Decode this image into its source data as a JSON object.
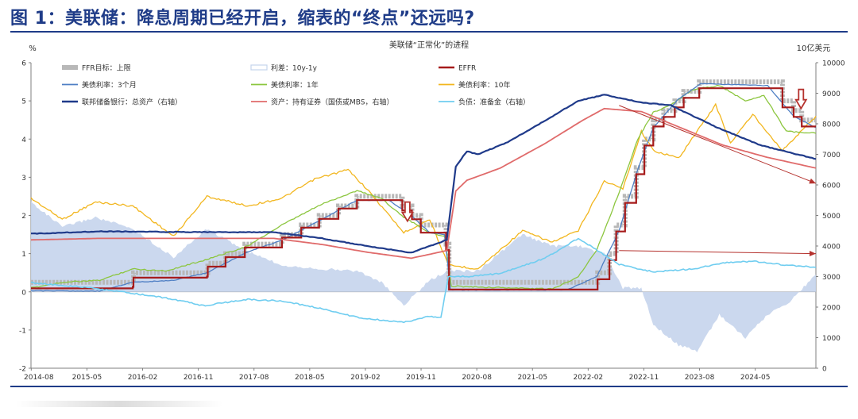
{
  "figure_title": "图 1：美联储：降息周期已经开启，缩表的“终点”还远吗?",
  "colors": {
    "ffr_target": "#b8b8b8",
    "spread": "#c5d4ec",
    "effr": "#a61b1b",
    "t3m": "#4f7fc4",
    "t1y": "#8cc63f",
    "t10y": "#f2b61e",
    "total_assets": "#1f3a8a",
    "securities": "#e06b6b",
    "reserves": "#6fcdf0",
    "arrow": "#b5322e",
    "axis": "#7f7f7f"
  },
  "chart_data": {
    "type": "line",
    "title": "美联储“正常化”的进程",
    "left_axis_label": "%",
    "right_axis_label": "10亿美元",
    "ylim_left": [
      -2,
      6
    ],
    "ylim_right": [
      0,
      10000
    ],
    "left_ticks": [
      "6",
      "5",
      "4",
      "3",
      "2",
      "1",
      "0",
      "-1",
      "-2"
    ],
    "right_ticks": [
      "10000",
      "9000",
      "8000",
      "7000",
      "6000",
      "5000",
      "4000",
      "3000",
      "2000",
      "1000",
      "0"
    ],
    "x_ticks": [
      "2014-08",
      "2015-05",
      "2016-02",
      "2016-11",
      "2017-08",
      "2018-05",
      "2019-02",
      "2019-11",
      "2020-08",
      "2021-05",
      "2022-02",
      "2022-11",
      "2023-08",
      "2024-05"
    ],
    "legend": [
      {
        "key": "ffr_target",
        "label": "FFR目标：上限",
        "kind": "bar"
      },
      {
        "key": "spread",
        "label": "利差：10y-1y",
        "kind": "area"
      },
      {
        "key": "effr",
        "label": "EFFR",
        "kind": "line"
      },
      {
        "key": "t3m",
        "label": "美债利率：3个月",
        "kind": "line"
      },
      {
        "key": "t1y",
        "label": "美债利率：1年",
        "kind": "line"
      },
      {
        "key": "t10y",
        "label": "美债利率：10年",
        "kind": "line"
      },
      {
        "key": "total_assets",
        "label": "联邦储备银行：总资产（右轴）",
        "kind": "line"
      },
      {
        "key": "securities",
        "label": "资产：持有证券（国债或MBS，右轴）",
        "kind": "line"
      },
      {
        "key": "reserves",
        "label": "负债：准备金（右轴）",
        "kind": "line"
      }
    ],
    "series": [
      {
        "name": "FFR目标：上限",
        "axis": "left",
        "points": [
          [
            2014.58,
            0.25
          ],
          [
            2015.95,
            0.25
          ],
          [
            2015.96,
            0.5
          ],
          [
            2016.95,
            0.5
          ],
          [
            2016.96,
            0.75
          ],
          [
            2017.2,
            1.0
          ],
          [
            2017.46,
            1.25
          ],
          [
            2017.96,
            1.5
          ],
          [
            2018.22,
            1.75
          ],
          [
            2018.46,
            2.0
          ],
          [
            2018.72,
            2.25
          ],
          [
            2018.97,
            2.5
          ],
          [
            2019.58,
            2.25
          ],
          [
            2019.71,
            2.0
          ],
          [
            2019.83,
            1.75
          ],
          [
            2020.17,
            1.25
          ],
          [
            2020.21,
            0.25
          ],
          [
            2022.21,
            0.5
          ],
          [
            2022.37,
            1.0
          ],
          [
            2022.46,
            1.75
          ],
          [
            2022.58,
            2.5
          ],
          [
            2022.73,
            3.25
          ],
          [
            2022.84,
            4.0
          ],
          [
            2022.96,
            4.5
          ],
          [
            2023.1,
            4.75
          ],
          [
            2023.25,
            5.0
          ],
          [
            2023.37,
            5.25
          ],
          [
            2023.58,
            5.5
          ],
          [
            2024.7,
            5.0
          ],
          [
            2024.85,
            4.75
          ],
          [
            2024.96,
            4.5
          ],
          [
            2025.15,
            4.5
          ]
        ]
      },
      {
        "name": "EFFR",
        "axis": "left",
        "points": [
          [
            2014.58,
            0.09
          ],
          [
            2015.95,
            0.13
          ],
          [
            2015.96,
            0.37
          ],
          [
            2016.95,
            0.4
          ],
          [
            2016.96,
            0.66
          ],
          [
            2017.2,
            0.91
          ],
          [
            2017.46,
            1.16
          ],
          [
            2017.96,
            1.42
          ],
          [
            2018.22,
            1.68
          ],
          [
            2018.46,
            1.91
          ],
          [
            2018.72,
            2.18
          ],
          [
            2018.97,
            2.4
          ],
          [
            2019.58,
            2.13
          ],
          [
            2019.71,
            1.9
          ],
          [
            2019.83,
            1.55
          ],
          [
            2020.17,
            1.1
          ],
          [
            2020.21,
            0.06
          ],
          [
            2022.21,
            0.33
          ],
          [
            2022.37,
            0.83
          ],
          [
            2022.46,
            1.58
          ],
          [
            2022.58,
            2.33
          ],
          [
            2022.73,
            3.08
          ],
          [
            2022.84,
            3.83
          ],
          [
            2022.96,
            4.33
          ],
          [
            2023.1,
            4.58
          ],
          [
            2023.25,
            4.83
          ],
          [
            2023.37,
            5.08
          ],
          [
            2023.58,
            5.33
          ],
          [
            2024.7,
            4.83
          ],
          [
            2024.85,
            4.58
          ],
          [
            2024.96,
            4.33
          ],
          [
            2025.15,
            4.33
          ]
        ]
      },
      {
        "name": "美债利率：3个月",
        "axis": "left",
        "points": [
          [
            2014.58,
            0.03
          ],
          [
            2015.5,
            0.02
          ],
          [
            2015.95,
            0.25
          ],
          [
            2016.5,
            0.3
          ],
          [
            2016.95,
            0.5
          ],
          [
            2017.5,
            1.05
          ],
          [
            2017.96,
            1.35
          ],
          [
            2018.5,
            1.9
          ],
          [
            2018.97,
            2.4
          ],
          [
            2019.4,
            2.4
          ],
          [
            2019.7,
            2.0
          ],
          [
            2019.95,
            1.55
          ],
          [
            2020.15,
            1.5
          ],
          [
            2020.23,
            0.05
          ],
          [
            2021.8,
            0.05
          ],
          [
            2022.2,
            0.4
          ],
          [
            2022.5,
            1.6
          ],
          [
            2022.75,
            3.2
          ],
          [
            2022.96,
            4.3
          ],
          [
            2023.3,
            5.05
          ],
          [
            2023.6,
            5.45
          ],
          [
            2024.5,
            5.4
          ],
          [
            2024.85,
            4.6
          ],
          [
            2025.15,
            4.3
          ]
        ]
      },
      {
        "name": "美债利率：1年",
        "axis": "left",
        "points": [
          [
            2014.58,
            0.1
          ],
          [
            2015.0,
            0.25
          ],
          [
            2015.5,
            0.3
          ],
          [
            2015.95,
            0.6
          ],
          [
            2016.4,
            0.55
          ],
          [
            2016.95,
            0.85
          ],
          [
            2017.5,
            1.2
          ],
          [
            2017.96,
            1.75
          ],
          [
            2018.5,
            2.3
          ],
          [
            2018.97,
            2.65
          ],
          [
            2019.3,
            2.45
          ],
          [
            2019.6,
            1.95
          ],
          [
            2019.95,
            1.55
          ],
          [
            2020.15,
            1.45
          ],
          [
            2020.24,
            0.15
          ],
          [
            2021.6,
            0.07
          ],
          [
            2021.95,
            0.4
          ],
          [
            2022.2,
            1.1
          ],
          [
            2022.5,
            2.6
          ],
          [
            2022.75,
            4.0
          ],
          [
            2022.96,
            4.7
          ],
          [
            2023.2,
            4.9
          ],
          [
            2023.5,
            5.3
          ],
          [
            2023.85,
            5.4
          ],
          [
            2024.2,
            5.0
          ],
          [
            2024.45,
            5.15
          ],
          [
            2024.75,
            4.2
          ],
          [
            2025.15,
            4.15
          ]
        ]
      },
      {
        "name": "美债利率：10年",
        "axis": "left",
        "points": [
          [
            2014.58,
            2.45
          ],
          [
            2015.0,
            1.9
          ],
          [
            2015.45,
            2.35
          ],
          [
            2015.95,
            2.25
          ],
          [
            2016.5,
            1.45
          ],
          [
            2016.95,
            2.5
          ],
          [
            2017.5,
            2.25
          ],
          [
            2017.96,
            2.45
          ],
          [
            2018.4,
            2.95
          ],
          [
            2018.85,
            3.2
          ],
          [
            2019.1,
            2.7
          ],
          [
            2019.6,
            1.55
          ],
          [
            2019.95,
            1.9
          ],
          [
            2020.2,
            0.7
          ],
          [
            2020.6,
            0.6
          ],
          [
            2021.2,
            1.6
          ],
          [
            2021.6,
            1.3
          ],
          [
            2021.95,
            1.6
          ],
          [
            2022.3,
            2.9
          ],
          [
            2022.55,
            2.7
          ],
          [
            2022.8,
            4.2
          ],
          [
            2022.96,
            3.7
          ],
          [
            2023.3,
            3.5
          ],
          [
            2023.8,
            4.9
          ],
          [
            2024.0,
            3.9
          ],
          [
            2024.3,
            4.65
          ],
          [
            2024.7,
            3.7
          ],
          [
            2025.15,
            4.6
          ]
        ]
      },
      {
        "name": "联邦储备银行：总资产（右轴）",
        "axis": "right",
        "points": [
          [
            2014.58,
            4400
          ],
          [
            2015.5,
            4480
          ],
          [
            2016.5,
            4460
          ],
          [
            2017.5,
            4450
          ],
          [
            2017.85,
            4450
          ],
          [
            2018.5,
            4250
          ],
          [
            2019.1,
            4000
          ],
          [
            2019.7,
            3780
          ],
          [
            2020.18,
            4200
          ],
          [
            2020.3,
            6600
          ],
          [
            2020.45,
            7100
          ],
          [
            2020.6,
            7000
          ],
          [
            2021.0,
            7400
          ],
          [
            2021.5,
            8100
          ],
          [
            2021.95,
            8750
          ],
          [
            2022.3,
            8950
          ],
          [
            2022.8,
            8700
          ],
          [
            2023.2,
            8600
          ],
          [
            2023.8,
            7900
          ],
          [
            2024.4,
            7300
          ],
          [
            2025.15,
            6850
          ]
        ]
      },
      {
        "name": "资产：持有证券（国债或MBS，右轴）",
        "axis": "right",
        "points": [
          [
            2014.58,
            4200
          ],
          [
            2015.5,
            4250
          ],
          [
            2016.5,
            4250
          ],
          [
            2017.5,
            4250
          ],
          [
            2017.85,
            4250
          ],
          [
            2018.5,
            4050
          ],
          [
            2019.1,
            3800
          ],
          [
            2019.7,
            3600
          ],
          [
            2020.18,
            3850
          ],
          [
            2020.3,
            5800
          ],
          [
            2020.45,
            6150
          ],
          [
            2020.9,
            6550
          ],
          [
            2021.5,
            7350
          ],
          [
            2022.0,
            8100
          ],
          [
            2022.3,
            8500
          ],
          [
            2022.8,
            8400
          ],
          [
            2023.3,
            7900
          ],
          [
            2023.9,
            7300
          ],
          [
            2024.5,
            6900
          ],
          [
            2025.15,
            6550
          ]
        ]
      },
      {
        "name": "负债：准备金（右轴）",
        "axis": "right",
        "points": [
          [
            2014.58,
            2800
          ],
          [
            2015.3,
            2650
          ],
          [
            2015.95,
            2450
          ],
          [
            2016.4,
            2300
          ],
          [
            2016.9,
            2050
          ],
          [
            2017.5,
            2250
          ],
          [
            2017.96,
            2200
          ],
          [
            2018.5,
            1950
          ],
          [
            2019.0,
            1650
          ],
          [
            2019.6,
            1500
          ],
          [
            2019.95,
            1700
          ],
          [
            2020.1,
            1650
          ],
          [
            2020.2,
            3000
          ],
          [
            2020.45,
            3000
          ],
          [
            2020.9,
            3100
          ],
          [
            2021.5,
            3600
          ],
          [
            2021.95,
            4250
          ],
          [
            2022.5,
            3400
          ],
          [
            2022.96,
            3150
          ],
          [
            2023.5,
            3250
          ],
          [
            2023.9,
            3450
          ],
          [
            2024.3,
            3500
          ],
          [
            2024.65,
            3400
          ],
          [
            2025.15,
            3300
          ]
        ]
      },
      {
        "name": "利差：10y-1y",
        "axis": "left",
        "points": [
          [
            2014.58,
            2.35
          ],
          [
            2015.0,
            1.7
          ],
          [
            2015.45,
            1.95
          ],
          [
            2015.95,
            1.65
          ],
          [
            2016.5,
            0.9
          ],
          [
            2016.95,
            1.65
          ],
          [
            2017.5,
            1.05
          ],
          [
            2017.96,
            0.7
          ],
          [
            2018.5,
            0.6
          ],
          [
            2018.97,
            0.55
          ],
          [
            2019.3,
            0.25
          ],
          [
            2019.6,
            -0.35
          ],
          [
            2019.95,
            0.3
          ],
          [
            2020.2,
            0.55
          ],
          [
            2020.6,
            0.55
          ],
          [
            2021.2,
            1.5
          ],
          [
            2021.6,
            1.2
          ],
          [
            2021.95,
            1.2
          ],
          [
            2022.3,
            1.0
          ],
          [
            2022.55,
            0.1
          ],
          [
            2022.8,
            0.1
          ],
          [
            2022.96,
            -0.85
          ],
          [
            2023.3,
            -1.4
          ],
          [
            2023.55,
            -1.55
          ],
          [
            2023.85,
            -0.6
          ],
          [
            2024.2,
            -1.2
          ],
          [
            2024.5,
            -0.6
          ],
          [
            2024.8,
            -0.25
          ],
          [
            2025.15,
            0.45
          ]
        ]
      }
    ],
    "annotations": [
      {
        "type": "down-arrow",
        "x": 2019.65,
        "y_left": 2.35
      },
      {
        "type": "down-arrow",
        "x": 2024.95,
        "y_left": 5.3
      },
      {
        "type": "trend-arrow",
        "from": [
          2022.5,
          8600
        ],
        "to": [
          2025.15,
          6050
        ],
        "axis": "right"
      },
      {
        "type": "trend-arrow",
        "from": [
          2022.5,
          3850
        ],
        "to": [
          2025.15,
          3750
        ],
        "axis": "right"
      }
    ]
  }
}
